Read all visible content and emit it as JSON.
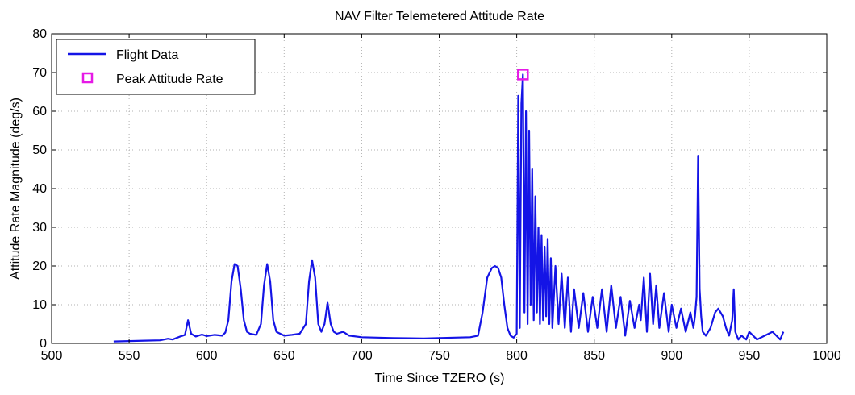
{
  "chart_data": {
    "type": "line",
    "title": "NAV Filter Telemetered Attitude Rate",
    "xlabel": "Time Since TZERO (s)",
    "ylabel": "Attitude Rate Magnitude (deg/s)",
    "xlim": [
      500,
      1000
    ],
    "ylim": [
      0,
      80
    ],
    "xticks": [
      500,
      550,
      600,
      650,
      700,
      750,
      800,
      850,
      900,
      950,
      1000
    ],
    "yticks": [
      0,
      10,
      20,
      30,
      40,
      50,
      60,
      70,
      80
    ],
    "grid": true,
    "legend_position": "top-left",
    "colors": {
      "flight_data": "#1414e6",
      "peak_marker": "#e619e6",
      "axes": "#000000",
      "grid": "#b0b0b0"
    },
    "series": [
      {
        "name": "Flight Data",
        "style": "line",
        "x": [
          540,
          550,
          560,
          570,
          575,
          578,
          583,
          586,
          588,
          590,
          593,
          597,
          600,
          605,
          610,
          612,
          614,
          616,
          618,
          620,
          622,
          624,
          626,
          628,
          632,
          635,
          637,
          639,
          641,
          643,
          645,
          650,
          655,
          660,
          664,
          666,
          668,
          670,
          672,
          674,
          676,
          678,
          680,
          682,
          684,
          688,
          692,
          700,
          720,
          740,
          760,
          770,
          775,
          778,
          781,
          784,
          786,
          788,
          790,
          792,
          794,
          796,
          798,
          800,
          801,
          802,
          803,
          804,
          805,
          806,
          807,
          808,
          809,
          810,
          811,
          812,
          813,
          814,
          815,
          816,
          817,
          818,
          819,
          820,
          821,
          822,
          823,
          825,
          827,
          829,
          831,
          833,
          835,
          837,
          840,
          843,
          846,
          849,
          852,
          855,
          858,
          861,
          864,
          867,
          870,
          873,
          876,
          879,
          880,
          882,
          884,
          886,
          888,
          890,
          892,
          895,
          898,
          900,
          903,
          906,
          909,
          912,
          914,
          915,
          916,
          917,
          918,
          919,
          920,
          922,
          925,
          928,
          930,
          933,
          935,
          937,
          939,
          940,
          941,
          943,
          945,
          948,
          950,
          955,
          960,
          965,
          970,
          972
        ],
        "y": [
          0.5,
          0.6,
          0.7,
          0.8,
          1.2,
          1.0,
          1.8,
          2.2,
          6.0,
          2.5,
          1.8,
          2.3,
          1.9,
          2.2,
          2.0,
          2.8,
          6.0,
          16.0,
          20.5,
          20.0,
          14.0,
          6.0,
          3.0,
          2.5,
          2.2,
          5.0,
          15.0,
          20.5,
          16.0,
          6.0,
          3.0,
          2.0,
          2.2,
          2.5,
          5.0,
          16.0,
          21.5,
          17.0,
          5.0,
          3.0,
          5.0,
          10.5,
          5.0,
          3.0,
          2.5,
          3.0,
          2.0,
          1.6,
          1.4,
          1.3,
          1.5,
          1.6,
          2.0,
          8.0,
          17.0,
          19.5,
          20.0,
          19.5,
          17.0,
          10.0,
          4.0,
          2.0,
          1.5,
          2.5,
          64.0,
          4.0,
          62.0,
          69.5,
          8.0,
          60.0,
          5.0,
          55.0,
          10.0,
          45.0,
          6.0,
          38.0,
          8.0,
          30.0,
          5.0,
          28.0,
          6.0,
          25.0,
          7.0,
          27.0,
          5.0,
          22.0,
          4.0,
          20.0,
          5.0,
          18.0,
          4.0,
          17.0,
          3.0,
          14.0,
          4.0,
          13.0,
          3.0,
          12.0,
          4.0,
          14.0,
          3.0,
          15.0,
          4.0,
          12.0,
          2.0,
          11.0,
          4.0,
          10.0,
          6.0,
          17.0,
          3.0,
          18.0,
          5.0,
          15.0,
          4.0,
          13.0,
          3.0,
          10.0,
          4.0,
          9.0,
          3.0,
          8.0,
          4.0,
          7.0,
          12.0,
          48.5,
          14.0,
          7.0,
          3.0,
          2.0,
          4.0,
          8.0,
          9.0,
          7.0,
          4.0,
          2.0,
          6.0,
          14.0,
          3.0,
          1.0,
          2.0,
          1.0,
          3.0,
          1.0,
          2.0,
          3.0,
          1.0,
          3.0
        ]
      },
      {
        "name": "Peak Attitude Rate",
        "style": "marker",
        "x": [
          804
        ],
        "y": [
          69.5
        ]
      }
    ]
  }
}
